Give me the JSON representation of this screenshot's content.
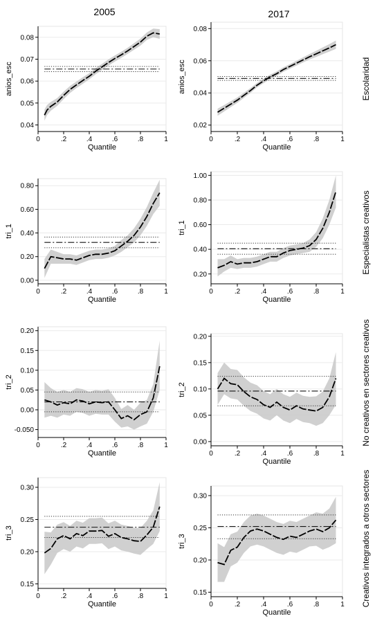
{
  "figure": {
    "column_titles": [
      "2005",
      "2017"
    ],
    "row_titles": [
      "Escolaridad",
      "Especialistas creativos",
      "No creativos en sectores creativos",
      "Creativos integrados a otros sectores"
    ]
  },
  "chart_data": [
    {
      "type": "line",
      "ylabel": "anios_esc",
      "xlabel": "Quantile",
      "xlim": [
        0,
        1
      ],
      "ylim": [
        0.037,
        0.085
      ],
      "x_ticks": [
        0,
        0.2,
        0.4,
        0.6,
        0.8,
        1
      ],
      "x_tick_labels": [
        "0",
        ".2",
        ".4",
        ".6",
        ".8",
        "1"
      ],
      "y_ticks": [
        0.04,
        0.05,
        0.06,
        0.07,
        0.08
      ],
      "y_tick_labels": [
        "0.04",
        "0.05",
        "0.06",
        "0.07",
        "0.08"
      ],
      "series": [
        {
          "x": [
            0.05,
            0.07,
            0.1,
            0.15,
            0.2,
            0.25,
            0.3,
            0.35,
            0.4,
            0.45,
            0.5,
            0.55,
            0.6,
            0.65,
            0.7,
            0.75,
            0.8,
            0.85,
            0.9,
            0.95
          ],
          "y": [
            0.0445,
            0.0468,
            0.0485,
            0.0505,
            0.0535,
            0.0562,
            0.0583,
            0.0603,
            0.0622,
            0.0645,
            0.0665,
            0.0685,
            0.0703,
            0.072,
            0.0738,
            0.0758,
            0.0778,
            0.0805,
            0.082,
            0.0815
          ],
          "lower": [
            0.042,
            0.0445,
            0.0465,
            0.0487,
            0.0518,
            0.0546,
            0.0568,
            0.0588,
            0.0608,
            0.0631,
            0.0651,
            0.0671,
            0.0689,
            0.0706,
            0.0724,
            0.0743,
            0.0762,
            0.0788,
            0.08,
            0.0793
          ],
          "upper": [
            0.047,
            0.0491,
            0.0505,
            0.0523,
            0.0552,
            0.0578,
            0.0598,
            0.0618,
            0.0636,
            0.0659,
            0.0679,
            0.0699,
            0.0717,
            0.0734,
            0.0752,
            0.0773,
            0.0794,
            0.0822,
            0.084,
            0.0837
          ]
        }
      ],
      "ols": {
        "estimate": 0.0655,
        "ci": [
          0.0643,
          0.0667
        ]
      }
    },
    {
      "type": "line",
      "ylabel": "anios_esc",
      "xlabel": "Quantile",
      "xlim": [
        0,
        1
      ],
      "ylim": [
        0.016,
        0.084
      ],
      "x_ticks": [
        0,
        0.2,
        0.4,
        0.6,
        0.8,
        1
      ],
      "x_tick_labels": [
        "0",
        ".2",
        ".4",
        ".6",
        ".8",
        "1"
      ],
      "y_ticks": [
        0.02,
        0.04,
        0.06,
        0.08
      ],
      "y_tick_labels": [
        "0.02",
        "0.04",
        "0.06",
        "0.08"
      ],
      "series": [
        {
          "x": [
            0.05,
            0.1,
            0.15,
            0.2,
            0.25,
            0.3,
            0.35,
            0.4,
            0.45,
            0.5,
            0.55,
            0.6,
            0.65,
            0.7,
            0.75,
            0.8,
            0.85,
            0.9,
            0.95
          ],
          "y": [
            0.028,
            0.0305,
            0.033,
            0.0355,
            0.0385,
            0.0415,
            0.0448,
            0.0475,
            0.05,
            0.052,
            0.0545,
            0.0565,
            0.0585,
            0.0605,
            0.0625,
            0.0643,
            0.0662,
            0.068,
            0.07
          ],
          "lower": [
            0.0258,
            0.0285,
            0.0312,
            0.0338,
            0.0369,
            0.04,
            0.0434,
            0.0461,
            0.0486,
            0.0506,
            0.0531,
            0.0551,
            0.057,
            0.0589,
            0.0608,
            0.0624,
            0.0641,
            0.0657,
            0.0674
          ],
          "upper": [
            0.0302,
            0.0325,
            0.0348,
            0.0372,
            0.0401,
            0.043,
            0.0462,
            0.0489,
            0.0514,
            0.0534,
            0.0559,
            0.0579,
            0.06,
            0.0621,
            0.0642,
            0.0662,
            0.0683,
            0.0703,
            0.0726
          ]
        }
      ],
      "ols": {
        "estimate": 0.049,
        "ci": [
          0.0478,
          0.0502
        ]
      }
    },
    {
      "type": "line",
      "ylabel": "tri_1",
      "xlabel": "Quantile",
      "xlim": [
        0,
        1
      ],
      "ylim": [
        -0.03,
        0.86
      ],
      "x_ticks": [
        0,
        0.2,
        0.4,
        0.6,
        0.8,
        1
      ],
      "x_tick_labels": [
        "0",
        ".2",
        ".4",
        ".6",
        ".8",
        "1"
      ],
      "y_ticks": [
        0,
        0.2,
        0.4,
        0.6,
        0.8
      ],
      "y_tick_labels": [
        "0.00",
        "0.20",
        "0.40",
        "0.60",
        "0.80"
      ],
      "series": [
        {
          "x": [
            0.05,
            0.1,
            0.15,
            0.2,
            0.25,
            0.3,
            0.35,
            0.4,
            0.45,
            0.5,
            0.55,
            0.6,
            0.65,
            0.7,
            0.75,
            0.8,
            0.85,
            0.9,
            0.95
          ],
          "y": [
            0.1,
            0.2,
            0.19,
            0.18,
            0.18,
            0.17,
            0.19,
            0.21,
            0.22,
            0.22,
            0.23,
            0.25,
            0.29,
            0.33,
            0.38,
            0.45,
            0.54,
            0.65,
            0.74
          ],
          "lower": [
            0.02,
            0.14,
            0.14,
            0.14,
            0.14,
            0.13,
            0.15,
            0.17,
            0.18,
            0.18,
            0.19,
            0.21,
            0.24,
            0.28,
            0.32,
            0.38,
            0.46,
            0.56,
            0.63
          ],
          "upper": [
            0.18,
            0.26,
            0.24,
            0.22,
            0.22,
            0.21,
            0.23,
            0.25,
            0.26,
            0.26,
            0.27,
            0.29,
            0.34,
            0.38,
            0.44,
            0.52,
            0.62,
            0.74,
            0.85
          ]
        }
      ],
      "ols": {
        "estimate": 0.32,
        "ci": [
          0.275,
          0.365
        ]
      }
    },
    {
      "type": "line",
      "ylabel": "tri_1",
      "xlabel": "Quantile",
      "xlim": [
        0,
        1
      ],
      "ylim": [
        0.12,
        1.03
      ],
      "x_ticks": [
        0,
        0.2,
        0.4,
        0.6,
        0.8,
        1
      ],
      "x_tick_labels": [
        "0",
        ".2",
        ".4",
        ".6",
        ".8",
        "1"
      ],
      "y_ticks": [
        0.2,
        0.4,
        0.6,
        0.8,
        1.0
      ],
      "y_tick_labels": [
        "0.20",
        "0.40",
        "0.60",
        "0.80",
        "1.00"
      ],
      "series": [
        {
          "x": [
            0.05,
            0.1,
            0.15,
            0.2,
            0.25,
            0.3,
            0.35,
            0.4,
            0.45,
            0.5,
            0.55,
            0.6,
            0.65,
            0.7,
            0.75,
            0.8,
            0.85,
            0.9,
            0.95
          ],
          "y": [
            0.25,
            0.27,
            0.3,
            0.28,
            0.29,
            0.29,
            0.3,
            0.32,
            0.34,
            0.34,
            0.37,
            0.39,
            0.4,
            0.41,
            0.43,
            0.48,
            0.57,
            0.7,
            0.87
          ],
          "lower": [
            0.18,
            0.22,
            0.25,
            0.24,
            0.25,
            0.25,
            0.26,
            0.28,
            0.3,
            0.3,
            0.33,
            0.35,
            0.36,
            0.37,
            0.38,
            0.42,
            0.49,
            0.6,
            0.74
          ],
          "upper": [
            0.32,
            0.32,
            0.35,
            0.32,
            0.33,
            0.33,
            0.34,
            0.36,
            0.38,
            0.38,
            0.41,
            0.43,
            0.44,
            0.45,
            0.48,
            0.54,
            0.65,
            0.8,
            1.0
          ]
        }
      ],
      "ols": {
        "estimate": 0.405,
        "ci": [
          0.36,
          0.45
        ]
      }
    },
    {
      "type": "line",
      "ylabel": "tri_2",
      "xlabel": "Quantile",
      "xlim": [
        0,
        1
      ],
      "ylim": [
        -0.07,
        0.21
      ],
      "x_ticks": [
        0,
        0.2,
        0.4,
        0.6,
        0.8,
        1
      ],
      "x_tick_labels": [
        "0",
        ".2",
        ".4",
        ".6",
        ".8",
        "1"
      ],
      "y_ticks": [
        -0.05,
        0,
        0.05,
        0.1,
        0.15,
        0.2
      ],
      "y_tick_labels": [
        "-0.050",
        "0.00",
        "0.05",
        "0.10",
        "0.15",
        "0.20"
      ],
      "series": [
        {
          "x": [
            0.05,
            0.1,
            0.15,
            0.2,
            0.25,
            0.3,
            0.35,
            0.4,
            0.45,
            0.5,
            0.55,
            0.6,
            0.65,
            0.7,
            0.75,
            0.8,
            0.85,
            0.9,
            0.95
          ],
          "y": [
            0.025,
            0.02,
            0.012,
            0.018,
            0.015,
            0.025,
            0.022,
            0.015,
            0.02,
            0.018,
            0.02,
            0.0,
            -0.022,
            -0.015,
            -0.025,
            -0.012,
            -0.005,
            0.03,
            0.11
          ],
          "lower": [
            -0.02,
            -0.015,
            -0.02,
            -0.012,
            -0.015,
            -0.005,
            -0.008,
            -0.015,
            -0.01,
            -0.012,
            -0.012,
            -0.03,
            -0.045,
            -0.042,
            -0.05,
            -0.042,
            -0.035,
            -0.005,
            0.05
          ],
          "upper": [
            0.07,
            0.055,
            0.045,
            0.05,
            0.045,
            0.055,
            0.052,
            0.045,
            0.05,
            0.048,
            0.052,
            0.03,
            0.002,
            0.012,
            0.0,
            0.018,
            0.025,
            0.065,
            0.175
          ]
        }
      ],
      "ols": {
        "estimate": 0.02,
        "ci": [
          -0.005,
          0.045
        ]
      }
    },
    {
      "type": "line",
      "ylabel": "tri_2",
      "xlabel": "Quantile",
      "xlim": [
        0,
        1
      ],
      "ylim": [
        -0.008,
        0.205
      ],
      "x_ticks": [
        0,
        0.2,
        0.4,
        0.6,
        0.8,
        1
      ],
      "x_tick_labels": [
        "0",
        ".2",
        ".4",
        ".6",
        ".8",
        "1"
      ],
      "y_ticks": [
        0,
        0.05,
        0.1,
        0.15,
        0.2
      ],
      "y_tick_labels": [
        "0.00",
        "0.05",
        "0.10",
        "0.15",
        "0.20"
      ],
      "series": [
        {
          "x": [
            0.05,
            0.1,
            0.15,
            0.2,
            0.25,
            0.3,
            0.35,
            0.4,
            0.45,
            0.5,
            0.55,
            0.6,
            0.65,
            0.7,
            0.75,
            0.8,
            0.85,
            0.9,
            0.95
          ],
          "y": [
            0.1,
            0.12,
            0.11,
            0.108,
            0.095,
            0.085,
            0.08,
            0.07,
            0.065,
            0.075,
            0.065,
            0.06,
            0.068,
            0.062,
            0.06,
            0.058,
            0.065,
            0.085,
            0.12
          ],
          "lower": [
            0.07,
            0.09,
            0.082,
            0.08,
            0.068,
            0.058,
            0.053,
            0.044,
            0.04,
            0.05,
            0.04,
            0.035,
            0.043,
            0.037,
            0.035,
            0.03,
            0.035,
            0.05,
            0.07
          ],
          "upper": [
            0.13,
            0.15,
            0.138,
            0.136,
            0.122,
            0.112,
            0.107,
            0.096,
            0.09,
            0.1,
            0.09,
            0.085,
            0.093,
            0.087,
            0.085,
            0.086,
            0.095,
            0.12,
            0.17
          ]
        }
      ],
      "ols": {
        "estimate": 0.096,
        "ci": [
          0.068,
          0.124
        ]
      }
    },
    {
      "type": "line",
      "ylabel": "tri_3",
      "xlabel": "Quantile",
      "xlim": [
        0,
        1
      ],
      "ylim": [
        0.143,
        0.315
      ],
      "x_ticks": [
        0,
        0.2,
        0.4,
        0.6,
        0.8,
        1
      ],
      "x_tick_labels": [
        "0",
        ".2",
        ".4",
        ".6",
        ".8",
        "1"
      ],
      "y_ticks": [
        0.15,
        0.2,
        0.25,
        0.3
      ],
      "y_tick_labels": [
        "0.15",
        "0.20",
        "0.25",
        "0.30"
      ],
      "series": [
        {
          "x": [
            0.05,
            0.1,
            0.15,
            0.2,
            0.25,
            0.3,
            0.35,
            0.4,
            0.45,
            0.5,
            0.55,
            0.6,
            0.65,
            0.7,
            0.75,
            0.8,
            0.85,
            0.9,
            0.95
          ],
          "y": [
            0.198,
            0.205,
            0.22,
            0.225,
            0.22,
            0.228,
            0.225,
            0.232,
            0.232,
            0.233,
            0.224,
            0.228,
            0.222,
            0.22,
            0.217,
            0.216,
            0.226,
            0.238,
            0.27
          ],
          "lower": [
            0.165,
            0.18,
            0.198,
            0.204,
            0.2,
            0.208,
            0.205,
            0.212,
            0.212,
            0.213,
            0.204,
            0.208,
            0.202,
            0.2,
            0.197,
            0.195,
            0.204,
            0.212,
            0.232
          ],
          "upper": [
            0.231,
            0.23,
            0.242,
            0.246,
            0.24,
            0.248,
            0.245,
            0.252,
            0.252,
            0.253,
            0.244,
            0.248,
            0.242,
            0.24,
            0.237,
            0.237,
            0.248,
            0.264,
            0.308
          ]
        }
      ],
      "ols": {
        "estimate": 0.238,
        "ci": [
          0.222,
          0.255
        ]
      }
    },
    {
      "type": "line",
      "ylabel": "tri_3",
      "xlabel": "Quantile",
      "xlim": [
        0,
        1
      ],
      "ylim": [
        0.143,
        0.315
      ],
      "x_ticks": [
        0,
        0.2,
        0.4,
        0.6,
        0.8,
        1
      ],
      "x_tick_labels": [
        "0",
        ".2",
        ".4",
        ".6",
        ".8",
        "1"
      ],
      "y_ticks": [
        0.15,
        0.2,
        0.25,
        0.3
      ],
      "y_tick_labels": [
        "0.15",
        "0.20",
        "0.25",
        "0.30"
      ],
      "series": [
        {
          "x": [
            0.05,
            0.1,
            0.15,
            0.2,
            0.25,
            0.3,
            0.35,
            0.4,
            0.45,
            0.5,
            0.55,
            0.6,
            0.65,
            0.7,
            0.75,
            0.8,
            0.85,
            0.9,
            0.95
          ],
          "y": [
            0.196,
            0.193,
            0.215,
            0.22,
            0.235,
            0.245,
            0.248,
            0.245,
            0.24,
            0.235,
            0.232,
            0.237,
            0.235,
            0.24,
            0.245,
            0.248,
            0.244,
            0.25,
            0.262
          ],
          "lower": [
            0.166,
            0.166,
            0.19,
            0.196,
            0.211,
            0.221,
            0.224,
            0.221,
            0.216,
            0.211,
            0.208,
            0.213,
            0.211,
            0.216,
            0.221,
            0.222,
            0.216,
            0.22,
            0.226
          ],
          "upper": [
            0.226,
            0.22,
            0.24,
            0.244,
            0.259,
            0.269,
            0.272,
            0.269,
            0.264,
            0.259,
            0.256,
            0.261,
            0.259,
            0.264,
            0.269,
            0.274,
            0.272,
            0.28,
            0.298
          ]
        }
      ],
      "ols": {
        "estimate": 0.252,
        "ci": [
          0.233,
          0.27
        ]
      }
    }
  ]
}
